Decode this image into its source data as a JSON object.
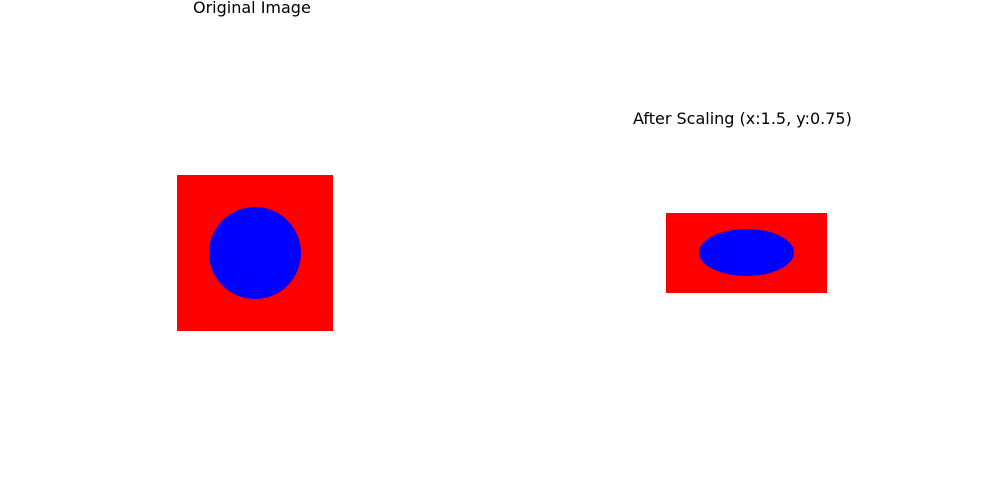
{
  "titles": {
    "original": "Original Image",
    "scaled": "After Scaling (x:1.5, y:0.75)"
  },
  "colors": {
    "square": "#ff0000",
    "circle": "#0000ff",
    "background": "#ffffff"
  }
}
